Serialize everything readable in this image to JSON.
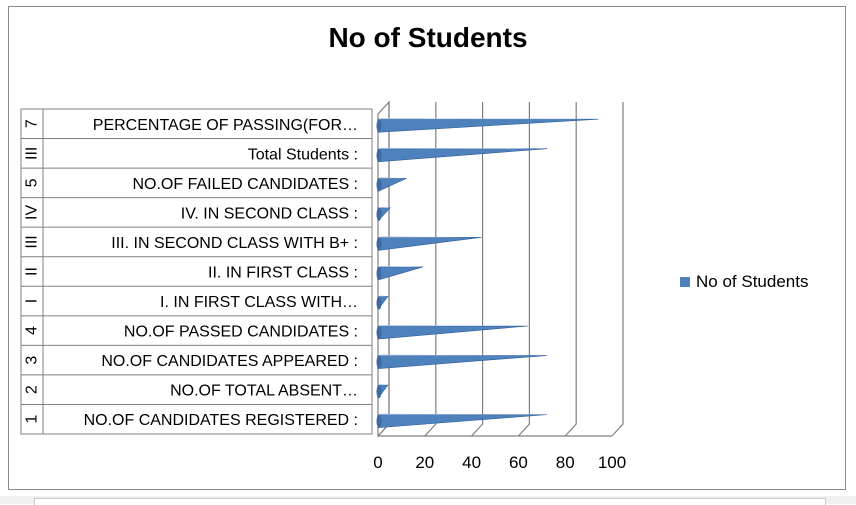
{
  "chart_data": {
    "type": "bar",
    "orientation": "horizontal",
    "title": "No of Students",
    "categories": [
      {
        "group": "1",
        "label": "NO.OF CANDIDATES REGISTERED :"
      },
      {
        "group": "2",
        "label": "NO.OF TOTAL ABSENT…"
      },
      {
        "group": "3",
        "label": "NO.OF CANDIDATES APPEARED :"
      },
      {
        "group": "4",
        "label": "NO.OF PASSED CANDIDATES :"
      },
      {
        "group": "I",
        "label": "I. IN FIRST CLASS WITH…"
      },
      {
        "group": "II",
        "label": "II. IN FIRST CLASS :"
      },
      {
        "group": "III",
        "label": "III. IN SECOND CLASS WITH B+ :"
      },
      {
        "group": "IV",
        "label": "IV. IN SECOND CLASS :"
      },
      {
        "group": "5",
        "label": "NO.OF FAILED CANDIDATES :"
      },
      {
        "group": "III",
        "label": "Total Students :"
      },
      {
        "group": "7",
        "label": "PERCENTAGE OF PASSING(FOR…"
      }
    ],
    "series": [
      {
        "name": "No of Students",
        "color": "#4f81bd",
        "values": [
          68,
          0,
          68,
          60,
          0,
          15,
          40,
          1,
          8,
          68,
          90
        ]
      }
    ],
    "xlim": [
      0,
      100
    ],
    "xticks": [
      "0",
      "20",
      "40",
      "60",
      "80",
      "100"
    ],
    "grid": true,
    "legend_position": "right"
  }
}
